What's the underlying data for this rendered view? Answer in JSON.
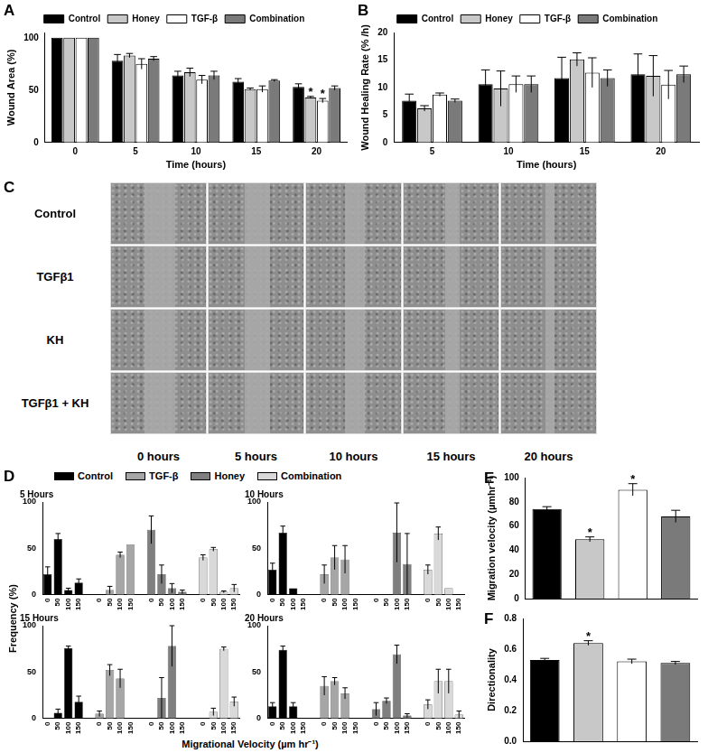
{
  "chart_data": [
    {
      "type": "bar",
      "panel": "A",
      "x_label": "Time (hours)",
      "y_label": "Wound Area (%)",
      "categories": [
        "0",
        "5",
        "10",
        "15",
        "20"
      ],
      "series": [
        {
          "name": "Control",
          "color": "#000000",
          "values": [
            100,
            78,
            64,
            58,
            53
          ],
          "errors": [
            0,
            6,
            4,
            3,
            3
          ]
        },
        {
          "name": "Honey",
          "color": "#c8c8c8",
          "values": [
            100,
            83,
            67,
            51,
            43
          ],
          "errors": [
            0,
            2,
            4,
            1,
            1
          ]
        },
        {
          "name": "TGF-β",
          "color": "#ffffff",
          "values": [
            100,
            75,
            60,
            51,
            40
          ],
          "errors": [
            0,
            5,
            4,
            3,
            2
          ]
        },
        {
          "name": "Combination",
          "color": "#7a7a7a",
          "values": [
            100,
            80,
            64,
            59,
            52
          ],
          "errors": [
            0,
            2,
            4,
            1,
            2
          ]
        }
      ],
      "annotations": [
        {
          "category": "20",
          "series": "Honey",
          "text": "*"
        },
        {
          "category": "20",
          "series": "TGF-β",
          "text": "*"
        }
      ],
      "ylim": [
        0,
        105
      ],
      "yticks": [
        0,
        50,
        100
      ],
      "grid": false,
      "legend": "top"
    },
    {
      "type": "bar",
      "panel": "B",
      "x_label": "Time (hours)",
      "y_label": "Wound Healing Rate (% /h)",
      "categories": [
        "5",
        "10",
        "15",
        "20"
      ],
      "series": [
        {
          "name": "Control",
          "color": "#000000",
          "values": [
            7.6,
            10.6,
            11.7,
            12.4
          ],
          "errors": [
            1.2,
            2.6,
            3.8,
            3.7
          ]
        },
        {
          "name": "Honey",
          "color": "#c8c8c8",
          "values": [
            6.2,
            9.8,
            15.1,
            12.1
          ],
          "errors": [
            0.5,
            3.2,
            1.2,
            3.7
          ]
        },
        {
          "name": "TGF-β",
          "color": "#ffffff",
          "values": [
            8.7,
            10.6,
            12.7,
            10.5
          ],
          "errors": [
            0.3,
            1.5,
            2.7,
            2.6
          ]
        },
        {
          "name": "Combination",
          "color": "#7a7a7a",
          "values": [
            7.6,
            10.6,
            11.7,
            12.4
          ],
          "errors": [
            0.3,
            1.5,
            1.5,
            1.5
          ]
        }
      ],
      "ylim": [
        0,
        20
      ],
      "yticks": [
        0,
        5,
        10,
        15,
        20
      ],
      "grid": false,
      "legend": "top"
    },
    {
      "type": "bar",
      "panel": "D",
      "x_label": "Migrational Velocity (µm hr⁻¹)",
      "y_label": "Frequency (%)",
      "categories": [
        "0",
        "50",
        "100",
        "150"
      ],
      "ylim": [
        0,
        100
      ],
      "yticks": [
        0,
        50,
        100
      ],
      "grid": false,
      "legend": "top",
      "subplots": [
        {
          "title": "5 Hours",
          "series": [
            {
              "name": "Control",
              "color": "#000000",
              "values": [
                22,
                60,
                5,
                13
              ],
              "errors": [
                8,
                6,
                2,
                4
              ]
            },
            {
              "name": "TGF-β",
              "color": "#a6a6a6",
              "values": [
                0,
                5,
                43,
                54
              ],
              "errors": [
                0,
                4,
                3,
                0
              ]
            },
            {
              "name": "Honey",
              "color": "#7f7f7f",
              "values": [
                70,
                22,
                7,
                3
              ],
              "errors": [
                15,
                10,
                5,
                2
              ]
            },
            {
              "name": "Combination",
              "color": "#d9d9d9",
              "values": [
                40,
                49,
                3,
                7
              ],
              "errors": [
                3,
                2,
                1,
                4
              ]
            }
          ]
        },
        {
          "title": "10 Hours",
          "series": [
            {
              "name": "Control",
              "color": "#000000",
              "values": [
                27,
                67,
                7,
                0
              ],
              "errors": [
                7,
                7,
                0,
                0
              ]
            },
            {
              "name": "TGF-β",
              "color": "#a6a6a6",
              "values": [
                22,
                40,
                38,
                0
              ],
              "errors": [
                10,
                13,
                15,
                0
              ]
            },
            {
              "name": "Honey",
              "color": "#7f7f7f",
              "values": [
                0,
                0,
                67,
                33
              ],
              "errors": [
                0,
                0,
                32,
                33
              ]
            },
            {
              "name": "Combination",
              "color": "#d9d9d9",
              "values": [
                27,
                66,
                7,
                0
              ],
              "errors": [
                5,
                7,
                0,
                0
              ]
            }
          ]
        },
        {
          "title": "15 Hours",
          "series": [
            {
              "name": "Control",
              "color": "#000000",
              "values": [
                0,
                6,
                76,
                18
              ],
              "errors": [
                0,
                4,
                2,
                6
              ]
            },
            {
              "name": "TGF-β",
              "color": "#a6a6a6",
              "values": [
                5,
                52,
                43,
                0
              ],
              "errors": [
                3,
                6,
                10,
                0
              ]
            },
            {
              "name": "Honey",
              "color": "#7f7f7f",
              "values": [
                0,
                22,
                78,
                0
              ],
              "errors": [
                0,
                22,
                22,
                0
              ]
            },
            {
              "name": "Combination",
              "color": "#d9d9d9",
              "values": [
                0,
                7,
                75,
                18
              ],
              "errors": [
                0,
                4,
                2,
                5
              ]
            }
          ]
        },
        {
          "title": "20 Hours",
          "series": [
            {
              "name": "Control",
              "color": "#000000",
              "values": [
                13,
                74,
                13,
                0
              ],
              "errors": [
                4,
                4,
                4,
                0
              ]
            },
            {
              "name": "TGF-β",
              "color": "#a6a6a6",
              "values": [
                35,
                40,
                27,
                0
              ],
              "errors": [
                10,
                4,
                6,
                0
              ]
            },
            {
              "name": "Honey",
              "color": "#7f7f7f",
              "values": [
                10,
                19,
                69,
                3
              ],
              "errors": [
                7,
                3,
                10,
                2
              ]
            },
            {
              "name": "Combination",
              "color": "#d9d9d9",
              "values": [
                15,
                40,
                40,
                4
              ],
              "errors": [
                5,
                13,
                13,
                4
              ]
            }
          ]
        }
      ]
    },
    {
      "type": "bar",
      "panel": "E",
      "y_label": "Migration velocity (µmhr⁻¹)",
      "categories": [
        null,
        null,
        null,
        null
      ],
      "values": [
        74,
        49,
        90,
        68
      ],
      "errors": [
        2,
        2,
        5,
        5
      ],
      "colors": [
        "#000000",
        "#c8c8c8",
        "#ffffff",
        "#7a7a7a"
      ],
      "annotations": [
        {
          "index": 1,
          "text": "*"
        },
        {
          "index": 2,
          "text": "*"
        }
      ],
      "ylim": [
        0,
        100
      ],
      "yticks": [
        0,
        20,
        40,
        60,
        80,
        100
      ],
      "grid": false,
      "tick_labels": "y"
    },
    {
      "type": "bar",
      "panel": "F",
      "y_label": "Directionality",
      "categories": [
        null,
        null,
        null,
        null
      ],
      "values": [
        0.53,
        0.64,
        0.52,
        0.51
      ],
      "errors": [
        0.01,
        0.015,
        0.015,
        0.01
      ],
      "colors": [
        "#000000",
        "#c8c8c8",
        "#ffffff",
        "#7a7a7a"
      ],
      "annotations": [
        {
          "index": 1,
          "text": "*"
        }
      ],
      "ylim": [
        0,
        0.8
      ],
      "yticks": [
        {
          "value": 0,
          "label": "0.0"
        },
        {
          "value": 0.2,
          "label": "0.2"
        },
        {
          "value": 0.4,
          "label": "0.4"
        },
        {
          "value": 0.6,
          "label": "0.6"
        },
        {
          "value": 0.8,
          "label": "0.8"
        }
      ],
      "grid": false,
      "tick_labels": "y"
    }
  ],
  "panel_c": {
    "panel": "C",
    "rows": [
      "Control",
      "TGFβ1",
      "KH",
      "TGFβ1 + KH"
    ],
    "columns": [
      "0 hours",
      "5 hours",
      "10 hours",
      "15 hours",
      "20 hours"
    ]
  }
}
